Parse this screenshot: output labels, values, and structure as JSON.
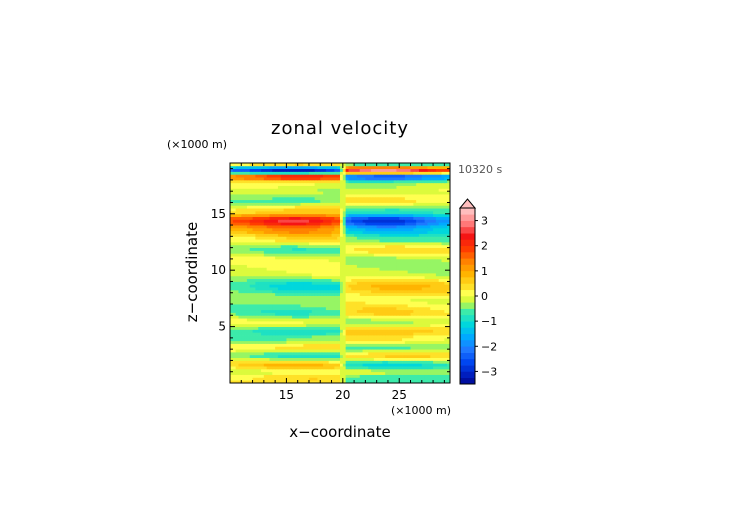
{
  "chart_data": {
    "type": "heatmap",
    "title": "zonal velocity",
    "xlabel": "x−coordinate",
    "ylabel": "z−coordinate",
    "x_unit_label": "(×1000 m)",
    "y_unit_label": "(×1000 m)",
    "time_label": "10320 s",
    "xlim": [
      10,
      29.5
    ],
    "ylim": [
      0,
      19.5
    ],
    "x_ticks": [
      15,
      20,
      25
    ],
    "y_ticks": [
      5,
      10,
      15
    ],
    "x_tick_labels": [
      "15",
      "20",
      "25"
    ],
    "y_tick_labels": [
      "5",
      "10",
      "15"
    ],
    "colorbar": {
      "min": -3.5,
      "max": 3.5,
      "step": 0.25,
      "tick_values": [
        3,
        2,
        1,
        0,
        -1,
        -2,
        -3
      ],
      "tick_labels": [
        "3",
        "2",
        "1",
        "0",
        "−1",
        "−2",
        "−3"
      ],
      "overflow_arrow": "top"
    },
    "colors": {
      "strong_negative": "#001a8c",
      "negative": "#2a7fff",
      "weak_negative": "#2fe3c0",
      "zero": "#ffff55",
      "weak_positive": "#ffb000",
      "positive": "#ff2200",
      "strong_positive": "#ffb6b6"
    },
    "description_note_free": true,
    "field": {
      "layers_left": [
        {
          "z": 0.5,
          "u": 0.7
        },
        {
          "z": 1.0,
          "u": 0.1
        },
        {
          "z": 1.6,
          "u": 0.9
        },
        {
          "z": 2.4,
          "u": -0.7
        },
        {
          "z": 3.2,
          "u": 0.6
        },
        {
          "z": 3.9,
          "u": -0.4
        },
        {
          "z": 4.6,
          "u": -1.0
        },
        {
          "z": 5.4,
          "u": 0.2
        },
        {
          "z": 6.3,
          "u": -0.6
        },
        {
          "z": 7.4,
          "u": -0.3
        },
        {
          "z": 8.5,
          "u": -1.0
        },
        {
          "z": 9.7,
          "u": 0.1
        },
        {
          "z": 10.8,
          "u": 0.2
        },
        {
          "z": 11.8,
          "u": -0.5
        },
        {
          "z": 12.8,
          "u": 0.6
        },
        {
          "z": 13.6,
          "u": 1.4
        },
        {
          "z": 14.4,
          "u": 2.8
        },
        {
          "z": 15.3,
          "u": 0.8
        },
        {
          "z": 16.2,
          "u": -0.6
        },
        {
          "z": 17.0,
          "u": -0.1
        },
        {
          "z": 17.7,
          "u": 0.3
        },
        {
          "z": 18.3,
          "u": 2.6
        },
        {
          "z": 18.9,
          "u": -3.2
        },
        {
          "z": 19.4,
          "u": 0.5
        }
      ]
    }
  }
}
